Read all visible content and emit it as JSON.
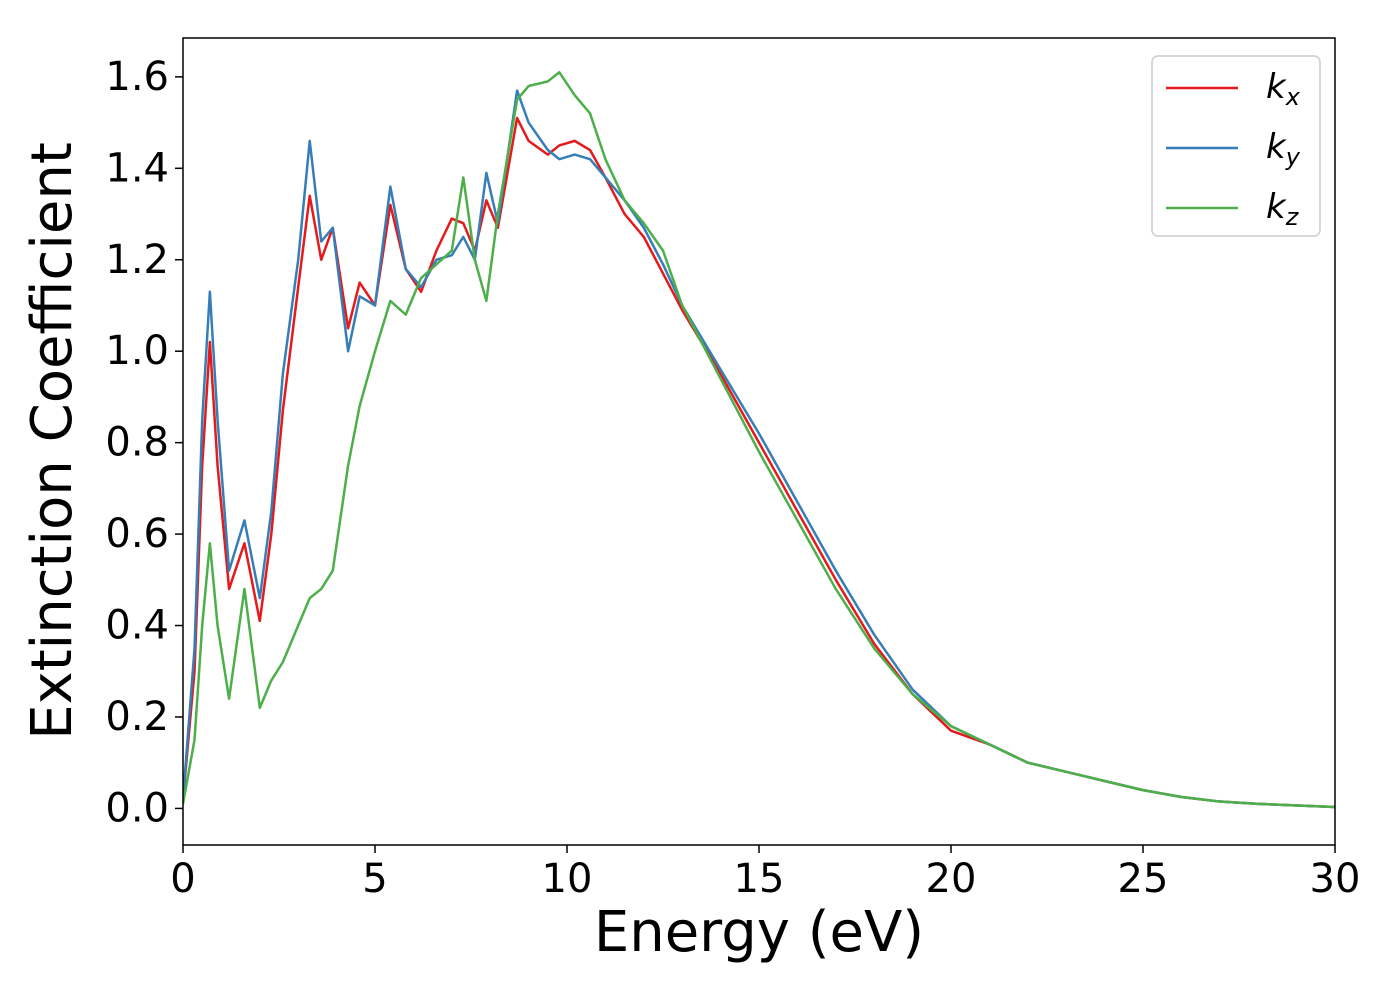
{
  "chart_data": {
    "type": "line",
    "xlabel": "Energy (eV)",
    "ylabel": "Extinction Coefficient",
    "x": [
      0,
      0.3,
      0.5,
      0.7,
      0.9,
      1.2,
      1.6,
      2.0,
      2.3,
      2.6,
      3.0,
      3.3,
      3.6,
      3.9,
      4.3,
      4.6,
      5.0,
      5.4,
      5.8,
      6.2,
      6.6,
      7.0,
      7.3,
      7.6,
      7.9,
      8.2,
      8.7,
      9.0,
      9.5,
      9.8,
      10.2,
      10.6,
      11.0,
      11.5,
      12.0,
      12.5,
      13.0,
      14.0,
      15.0,
      16.0,
      17.0,
      18.0,
      19.0,
      20.0,
      21.0,
      22.0,
      23.0,
      24.0,
      25.0,
      26.0,
      27.0,
      28.0,
      30.0
    ],
    "series": [
      {
        "name": "kx",
        "color": "#e41a1c",
        "values": [
          0.02,
          0.3,
          0.75,
          1.02,
          0.75,
          0.48,
          0.58,
          0.41,
          0.6,
          0.87,
          1.14,
          1.34,
          1.2,
          1.27,
          1.05,
          1.15,
          1.1,
          1.32,
          1.18,
          1.13,
          1.22,
          1.29,
          1.28,
          1.22,
          1.33,
          1.27,
          1.51,
          1.46,
          1.43,
          1.45,
          1.46,
          1.44,
          1.38,
          1.3,
          1.25,
          1.17,
          1.09,
          0.95,
          0.8,
          0.65,
          0.5,
          0.36,
          0.25,
          0.17,
          0.14,
          0.1,
          0.08,
          0.06,
          0.04,
          0.025,
          0.015,
          0.01,
          0.003
        ]
      },
      {
        "name": "ky",
        "color": "#377eb8",
        "values": [
          0.02,
          0.35,
          0.85,
          1.13,
          0.85,
          0.52,
          0.63,
          0.46,
          0.65,
          0.95,
          1.2,
          1.46,
          1.24,
          1.27,
          1.0,
          1.12,
          1.1,
          1.36,
          1.18,
          1.14,
          1.2,
          1.21,
          1.25,
          1.2,
          1.39,
          1.28,
          1.57,
          1.5,
          1.44,
          1.42,
          1.43,
          1.42,
          1.38,
          1.33,
          1.27,
          1.19,
          1.1,
          0.96,
          0.82,
          0.67,
          0.52,
          0.38,
          0.26,
          0.18,
          0.14,
          0.1,
          0.08,
          0.06,
          0.04,
          0.025,
          0.015,
          0.01,
          0.003
        ]
      },
      {
        "name": "kz",
        "color": "#4daf4a",
        "values": [
          0.01,
          0.15,
          0.4,
          0.58,
          0.4,
          0.24,
          0.48,
          0.22,
          0.28,
          0.32,
          0.4,
          0.46,
          0.48,
          0.52,
          0.75,
          0.88,
          1.0,
          1.11,
          1.08,
          1.16,
          1.19,
          1.22,
          1.38,
          1.2,
          1.11,
          1.3,
          1.55,
          1.58,
          1.59,
          1.61,
          1.56,
          1.52,
          1.42,
          1.33,
          1.28,
          1.22,
          1.1,
          0.94,
          0.78,
          0.63,
          0.48,
          0.35,
          0.25,
          0.18,
          0.14,
          0.1,
          0.08,
          0.06,
          0.04,
          0.025,
          0.015,
          0.01,
          0.003
        ]
      }
    ],
    "xlim": [
      0,
      30
    ],
    "ylim": [
      -0.08,
      1.685
    ],
    "xticks": [
      0,
      5,
      10,
      15,
      20,
      25,
      30
    ],
    "yticks": [
      {
        "value": 0,
        "label": "0.0"
      },
      0.2,
      0.4,
      0.6,
      0.8,
      {
        "value": 1,
        "label": "1.0"
      },
      1.2,
      1.4,
      1.6
    ],
    "legend": "upper right",
    "grid": false
  }
}
